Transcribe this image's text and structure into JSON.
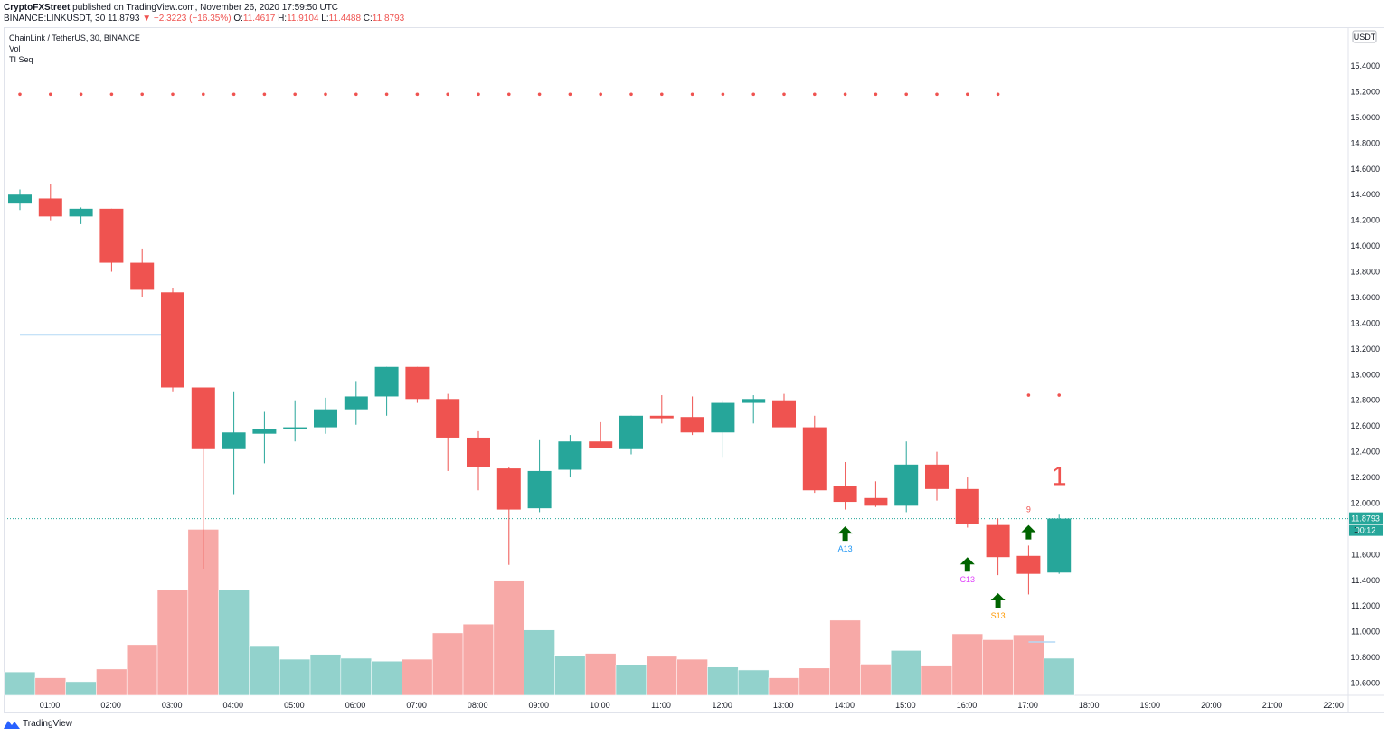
{
  "header": {
    "publisher": "CryptoFXStreet",
    "published_text": " published on TradingView.com, November 26, 2020 17:59:50 UTC",
    "symbol_line": "BINANCE:LINKUSDT, 30",
    "last": "11.8793",
    "change": "−2.3223 (−16.35%)",
    "o_label": "O:",
    "o": "11.4617",
    "h_label": "H:",
    "h": "11.9104",
    "l_label": "L:",
    "l": "11.4488",
    "c_label": "C:",
    "c": "11.8793"
  },
  "legend": {
    "main": "ChainLink / TetherUS, 30, BINANCE",
    "vol": "Vol",
    "indicator": "TI Seq"
  },
  "branding": {
    "label": "TradingView"
  },
  "price_axis": {
    "currency": "USDT",
    "ticks": [
      "15.4000",
      "15.2000",
      "15.0000",
      "14.8000",
      "14.6000",
      "14.4000",
      "14.2000",
      "14.0000",
      "13.8000",
      "13.6000",
      "13.4000",
      "13.2000",
      "13.0000",
      "12.8000",
      "12.6000",
      "12.4000",
      "12.2000",
      "12.0000",
      "11.6000",
      "11.4000",
      "11.2000",
      "11.0000",
      "10.8000",
      "10.6000"
    ],
    "last_price_label": "11.8793",
    "countdown_label": "00:12",
    "partial_label": "1"
  },
  "chart_data": {
    "type": "candlestick",
    "title": "ChainLink / TetherUS, 30, BINANCE",
    "xlabel": "",
    "ylabel": "",
    "ylim": [
      10.5,
      15.5
    ],
    "colors": {
      "up": "#26a69a",
      "down": "#ef5350",
      "vol_up": "#92d2cc",
      "vol_down": "#f7a9a7",
      "signal": "#006400",
      "dot": "#ef5350"
    },
    "x_ticks": [
      "01:00",
      "02:00",
      "03:00",
      "04:00",
      "05:00",
      "06:00",
      "07:00",
      "08:00",
      "09:00",
      "10:00",
      "11:00",
      "12:00",
      "13:00",
      "14:00",
      "15:00",
      "16:00",
      "17:00",
      "18:00",
      "19:00",
      "20:00",
      "21:00",
      "22:00"
    ],
    "candles": [
      {
        "o": 14.33,
        "h": 14.44,
        "l": 14.28,
        "c": 14.4
      },
      {
        "o": 14.37,
        "h": 14.48,
        "l": 14.2,
        "c": 14.23
      },
      {
        "o": 14.23,
        "h": 14.3,
        "l": 14.17,
        "c": 14.29
      },
      {
        "o": 14.29,
        "h": 14.29,
        "l": 13.8,
        "c": 13.87
      },
      {
        "o": 13.87,
        "h": 13.98,
        "l": 13.6,
        "c": 13.66
      },
      {
        "o": 13.64,
        "h": 13.67,
        "l": 12.87,
        "c": 12.9
      },
      {
        "o": 12.9,
        "h": 12.9,
        "l": 11.49,
        "c": 12.42
      },
      {
        "o": 12.42,
        "h": 12.87,
        "l": 12.07,
        "c": 12.55
      },
      {
        "o": 12.54,
        "h": 12.71,
        "l": 12.31,
        "c": 12.58
      },
      {
        "o": 12.59,
        "h": 12.8,
        "l": 12.48,
        "c": 12.59
      },
      {
        "o": 12.59,
        "h": 12.82,
        "l": 12.54,
        "c": 12.73
      },
      {
        "o": 12.73,
        "h": 12.95,
        "l": 12.61,
        "c": 12.83
      },
      {
        "o": 12.83,
        "h": 13.06,
        "l": 12.68,
        "c": 13.06
      },
      {
        "o": 13.06,
        "h": 13.06,
        "l": 12.78,
        "c": 12.81
      },
      {
        "o": 12.81,
        "h": 12.85,
        "l": 12.25,
        "c": 12.51
      },
      {
        "o": 12.51,
        "h": 12.56,
        "l": 12.1,
        "c": 12.28
      },
      {
        "o": 12.27,
        "h": 12.28,
        "l": 11.52,
        "c": 11.95
      },
      {
        "o": 11.96,
        "h": 12.49,
        "l": 11.93,
        "c": 12.25
      },
      {
        "o": 12.26,
        "h": 12.53,
        "l": 12.2,
        "c": 12.48
      },
      {
        "o": 12.48,
        "h": 12.63,
        "l": 12.44,
        "c": 12.43
      },
      {
        "o": 12.42,
        "h": 12.68,
        "l": 12.38,
        "c": 12.68
      },
      {
        "o": 12.68,
        "h": 12.84,
        "l": 12.62,
        "c": 12.66
      },
      {
        "o": 12.67,
        "h": 12.83,
        "l": 12.53,
        "c": 12.55
      },
      {
        "o": 12.55,
        "h": 12.8,
        "l": 12.36,
        "c": 12.78
      },
      {
        "o": 12.78,
        "h": 12.84,
        "l": 12.62,
        "c": 12.81
      },
      {
        "o": 12.8,
        "h": 12.85,
        "l": 12.6,
        "c": 12.59
      },
      {
        "o": 12.59,
        "h": 12.68,
        "l": 12.08,
        "c": 12.1
      },
      {
        "o": 12.13,
        "h": 12.32,
        "l": 11.95,
        "c": 12.01
      },
      {
        "o": 12.04,
        "h": 12.17,
        "l": 11.97,
        "c": 11.98
      },
      {
        "o": 11.98,
        "h": 12.48,
        "l": 11.93,
        "c": 12.3
      },
      {
        "o": 12.3,
        "h": 12.4,
        "l": 12.02,
        "c": 12.11
      },
      {
        "o": 12.11,
        "h": 12.2,
        "l": 11.81,
        "c": 11.84
      },
      {
        "o": 11.83,
        "h": 11.88,
        "l": 11.44,
        "c": 11.58
      },
      {
        "o": 11.59,
        "h": 11.67,
        "l": 11.29,
        "c": 11.45
      },
      {
        "o": 11.46,
        "h": 11.91,
        "l": 11.45,
        "c": 11.88
      }
    ],
    "volume": [
      {
        "v": 0.24,
        "up": true
      },
      {
        "v": 0.18,
        "up": false
      },
      {
        "v": 0.14,
        "up": true
      },
      {
        "v": 0.27,
        "up": false
      },
      {
        "v": 0.52,
        "up": false
      },
      {
        "v": 1.08,
        "up": false
      },
      {
        "v": 1.7,
        "up": false
      },
      {
        "v": 1.08,
        "up": true
      },
      {
        "v": 0.5,
        "up": true
      },
      {
        "v": 0.37,
        "up": true
      },
      {
        "v": 0.42,
        "up": true
      },
      {
        "v": 0.38,
        "up": true
      },
      {
        "v": 0.35,
        "up": true
      },
      {
        "v": 0.37,
        "up": false
      },
      {
        "v": 0.64,
        "up": false
      },
      {
        "v": 0.73,
        "up": false
      },
      {
        "v": 1.17,
        "up": false
      },
      {
        "v": 0.67,
        "up": true
      },
      {
        "v": 0.41,
        "up": true
      },
      {
        "v": 0.43,
        "up": false
      },
      {
        "v": 0.31,
        "up": true
      },
      {
        "v": 0.4,
        "up": false
      },
      {
        "v": 0.37,
        "up": false
      },
      {
        "v": 0.29,
        "up": true
      },
      {
        "v": 0.26,
        "up": true
      },
      {
        "v": 0.18,
        "up": false
      },
      {
        "v": 0.28,
        "up": false
      },
      {
        "v": 0.77,
        "up": false
      },
      {
        "v": 0.32,
        "up": false
      },
      {
        "v": 0.46,
        "up": true
      },
      {
        "v": 0.3,
        "up": false
      },
      {
        "v": 0.63,
        "up": false
      },
      {
        "v": 0.57,
        "up": false
      },
      {
        "v": 0.62,
        "up": false
      },
      {
        "v": 0.38,
        "up": true
      }
    ],
    "sequential_dots": {
      "y": 15.18,
      "from_index": 0,
      "to_index": 32
    },
    "right_dots": {
      "y": 12.84,
      "indices": [
        33,
        34
      ]
    },
    "support_line": {
      "y": 13.31,
      "from_index": 0,
      "to_index": 5
    },
    "small_line": {
      "y": 10.92,
      "from_index": 33,
      "to_index": 34
    },
    "signals": [
      {
        "index": 27,
        "y": 11.82,
        "label": "A13",
        "label_color": "#2196f3"
      },
      {
        "index": 31,
        "y": 11.58,
        "label": "C13",
        "label_color": "#e040fb"
      },
      {
        "index": 32,
        "y": 11.3,
        "label": "S13",
        "label_color": "#ff9800"
      },
      {
        "index": 33,
        "y": 11.83,
        "label": "9",
        "label_color": "#ef5350",
        "label_above": true
      }
    ],
    "count_label": {
      "index": 34,
      "y": 12.14,
      "text": "1",
      "color": "#ef5350"
    }
  }
}
